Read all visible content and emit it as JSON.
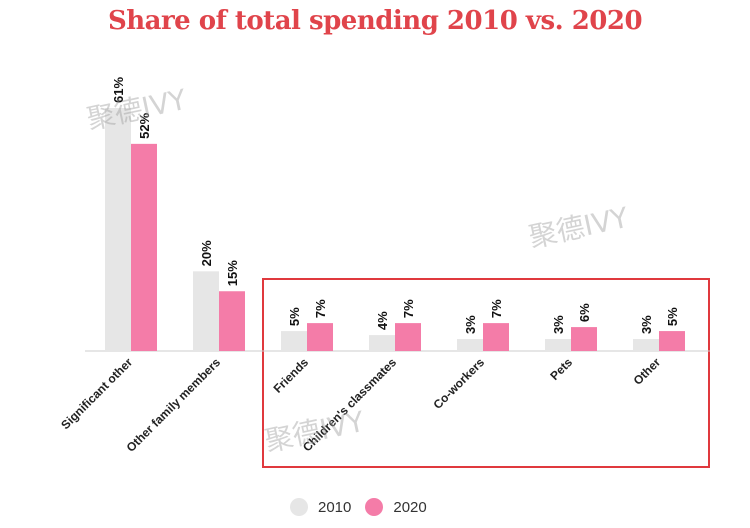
{
  "title": "Share of total spending 2010 vs. 2020",
  "colors": {
    "s2010": "#e6e6e6",
    "s2020": "#f47ca8",
    "axis": "#cccccc",
    "highlight": "#e0393e",
    "title": "#e0444b"
  },
  "watermark": "聚德IVY",
  "chart_data": {
    "type": "bar",
    "title": "Share of total spending 2010 vs. 2020",
    "categories": [
      "Significant other",
      "Other family members",
      "Friends",
      "Children's classmates",
      "Co-workers",
      "Pets",
      "Other"
    ],
    "series": [
      {
        "name": "2010",
        "values": [
          61,
          20,
          5,
          4,
          3,
          3,
          3
        ],
        "labels": [
          "61%",
          "20%",
          "5%",
          "4%",
          "3%",
          "3%",
          "3%"
        ]
      },
      {
        "name": "2020",
        "values": [
          52,
          15,
          7,
          7,
          7,
          6,
          5
        ],
        "labels": [
          "52%",
          "15%",
          "7%",
          "7%",
          "7%",
          "6%",
          "5%"
        ]
      }
    ],
    "ylim": [
      0,
      61
    ],
    "legend": "bottom-center",
    "grid": false
  }
}
